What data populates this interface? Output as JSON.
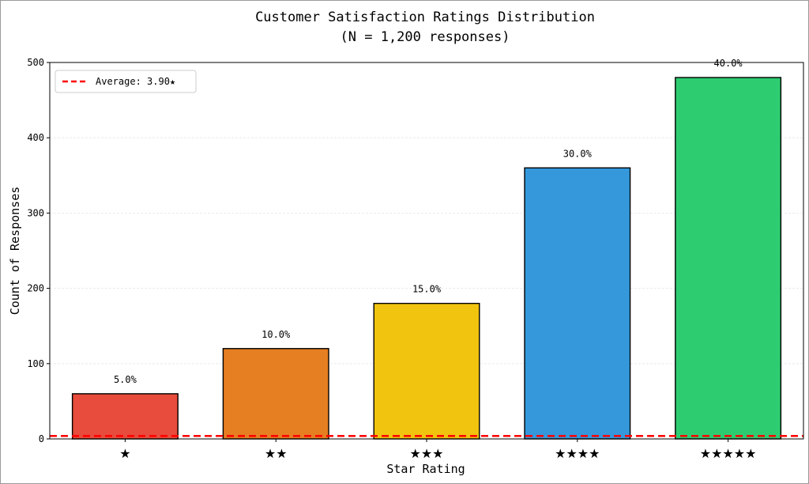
{
  "chart_data": {
    "type": "bar",
    "title": "Customer Satisfaction Ratings Distribution",
    "subtitle": "(N = 1,200 responses)",
    "xlabel": "Star Rating",
    "ylabel": "Count of Responses",
    "categories": [
      "★",
      "★★",
      "★★★",
      "★★★★",
      "★★★★★"
    ],
    "values": [
      60,
      120,
      180,
      360,
      480
    ],
    "data_labels": [
      "5.0%",
      "10.0%",
      "15.0%",
      "30.0%",
      "40.0%"
    ],
    "colors": [
      "#e74c3c",
      "#e67e22",
      "#f1c40f",
      "#3498db",
      "#2ecc71"
    ],
    "ylim": [
      0,
      500
    ],
    "yticks": [
      0,
      100,
      200,
      300,
      400,
      500
    ],
    "grid": true,
    "average": {
      "value": 3.9,
      "label": "Average: 3.90★",
      "color": "#ff0000"
    },
    "legend_position": "top-left"
  }
}
